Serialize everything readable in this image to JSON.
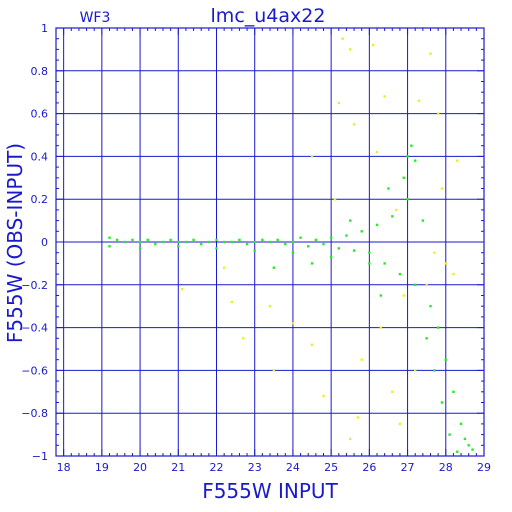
{
  "chart_data": {
    "type": "scatter",
    "panel_label": "WF3",
    "title": "lmc_u4ax22",
    "xlabel": "F555W INPUT",
    "ylabel": "F555W (OBS-INPUT)",
    "xlim": [
      17.8,
      29
    ],
    "ylim": [
      -1,
      1
    ],
    "xticks": [
      18,
      19,
      20,
      21,
      22,
      23,
      24,
      25,
      26,
      27,
      28,
      29
    ],
    "yticks": [
      -1,
      -0.8,
      -0.6,
      -0.4,
      -0.2,
      0,
      0.2,
      0.4,
      0.6,
      0.8,
      1
    ],
    "ytick_labels": [
      "−1",
      "−0.8",
      "−0.6",
      "−0.4",
      "−0.2",
      "0",
      "0.2",
      "0.4",
      "0.6",
      "0.8",
      "1"
    ],
    "grid": true,
    "colors": {
      "axis": "#1a1acc",
      "green_points": "#22ee22",
      "yellow_points": "#eeee22"
    },
    "series": [
      {
        "color": "#22ee22",
        "points": [
          [
            19.2,
            0.02
          ],
          [
            19.4,
            0.01
          ],
          [
            19.6,
            0.0
          ],
          [
            19.8,
            0.01
          ],
          [
            20.0,
            0.0
          ],
          [
            20.2,
            0.01
          ],
          [
            20.4,
            -0.01
          ],
          [
            20.6,
            0.0
          ],
          [
            20.8,
            0.01
          ],
          [
            21.0,
            0.0
          ],
          [
            21.2,
            0.0
          ],
          [
            21.4,
            0.01
          ],
          [
            21.6,
            -0.01
          ],
          [
            21.8,
            0.0
          ],
          [
            22.0,
            0.01
          ],
          [
            22.2,
            0.0
          ],
          [
            22.4,
            0.0
          ],
          [
            22.6,
            0.01
          ],
          [
            22.8,
            -0.01
          ],
          [
            23.0,
            0.0
          ],
          [
            23.2,
            0.01
          ],
          [
            23.4,
            0.0
          ],
          [
            23.6,
            0.01
          ],
          [
            23.8,
            -0.01
          ],
          [
            24.0,
            0.0
          ],
          [
            24.2,
            0.02
          ],
          [
            24.4,
            -0.02
          ],
          [
            24.6,
            0.01
          ],
          [
            24.8,
            -0.01
          ],
          [
            25.0,
            0.02
          ],
          [
            25.2,
            -0.03
          ],
          [
            25.4,
            0.03
          ],
          [
            25.6,
            -0.04
          ],
          [
            25.8,
            0.05
          ],
          [
            26.0,
            -0.05
          ],
          [
            26.2,
            0.08
          ],
          [
            26.4,
            -0.1
          ],
          [
            26.6,
            0.12
          ],
          [
            26.8,
            -0.15
          ],
          [
            27.0,
            0.2
          ],
          [
            27.2,
            -0.2
          ],
          [
            27.4,
            0.1
          ],
          [
            27.6,
            -0.3
          ],
          [
            27.8,
            -0.4
          ],
          [
            28.0,
            -0.55
          ],
          [
            28.2,
            -0.7
          ],
          [
            28.4,
            -0.85
          ],
          [
            28.6,
            -0.95
          ],
          [
            19.2,
            -0.02
          ],
          [
            20.0,
            -0.03
          ],
          [
            21.0,
            -0.02
          ],
          [
            22.0,
            -0.03
          ],
          [
            23.0,
            -0.04
          ],
          [
            24.0,
            -0.05
          ],
          [
            25.0,
            -0.07
          ],
          [
            26.0,
            -0.1
          ],
          [
            26.5,
            0.25
          ],
          [
            27.0,
            0.4
          ],
          [
            27.1,
            0.45
          ],
          [
            27.2,
            0.38
          ],
          [
            26.9,
            0.3
          ],
          [
            27.5,
            -0.45
          ],
          [
            27.7,
            -0.6
          ],
          [
            27.9,
            -0.75
          ],
          [
            28.1,
            -0.9
          ],
          [
            28.3,
            -0.98
          ],
          [
            28.5,
            -0.92
          ],
          [
            28.7,
            -0.97
          ],
          [
            23.5,
            -0.12
          ],
          [
            24.5,
            -0.1
          ],
          [
            25.5,
            0.1
          ],
          [
            26.3,
            -0.25
          ]
        ]
      },
      {
        "color": "#eeee22",
        "points": [
          [
            25.5,
            0.9
          ],
          [
            25.3,
            0.95
          ],
          [
            26.1,
            0.92
          ],
          [
            27.6,
            0.88
          ],
          [
            25.2,
            0.65
          ],
          [
            26.4,
            0.68
          ],
          [
            27.3,
            0.66
          ],
          [
            27.8,
            0.6
          ],
          [
            25.6,
            0.55
          ],
          [
            24.5,
            0.4
          ],
          [
            26.2,
            0.42
          ],
          [
            28.3,
            0.38
          ],
          [
            27.9,
            0.25
          ],
          [
            25.1,
            0.2
          ],
          [
            26.7,
            0.15
          ],
          [
            28.0,
            -0.1
          ],
          [
            22.2,
            -0.12
          ],
          [
            21.1,
            -0.22
          ],
          [
            22.4,
            -0.28
          ],
          [
            23.4,
            -0.3
          ],
          [
            22.7,
            -0.45
          ],
          [
            24.0,
            -0.38
          ],
          [
            24.5,
            -0.48
          ],
          [
            23.5,
            -0.6
          ],
          [
            25.8,
            -0.55
          ],
          [
            24.8,
            -0.72
          ],
          [
            25.7,
            -0.82
          ],
          [
            26.6,
            -0.7
          ],
          [
            25.5,
            -0.92
          ],
          [
            26.8,
            -0.85
          ],
          [
            27.2,
            -0.6
          ],
          [
            26.3,
            -0.4
          ],
          [
            26.9,
            -0.25
          ],
          [
            27.5,
            -0.2
          ],
          [
            28.2,
            -0.15
          ],
          [
            27.7,
            -0.05
          ]
        ]
      }
    ]
  }
}
